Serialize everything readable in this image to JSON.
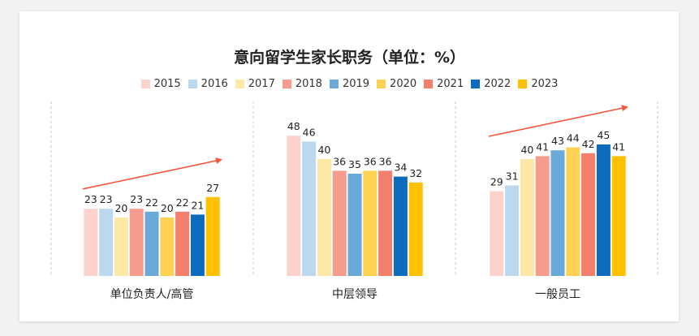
{
  "chart_data": {
    "type": "bar",
    "title": "意向留学生家长职务（单位：%）",
    "categories": [
      "单位负责人/高管",
      "中层领导",
      "一般员工"
    ],
    "series": [
      {
        "name": "2015",
        "color": "#fcd2cc",
        "values": [
          23,
          48,
          29
        ]
      },
      {
        "name": "2016",
        "color": "#bcd8ef",
        "values": [
          23,
          46,
          31
        ]
      },
      {
        "name": "2017",
        "color": "#fde8a6",
        "values": [
          20,
          40,
          40
        ]
      },
      {
        "name": "2018",
        "color": "#f69c8e",
        "values": [
          23,
          36,
          41
        ]
      },
      {
        "name": "2019",
        "color": "#6aaad8",
        "values": [
          22,
          35,
          43
        ]
      },
      {
        "name": "2020",
        "color": "#fdd253",
        "values": [
          20,
          36,
          44
        ]
      },
      {
        "name": "2021",
        "color": "#f47f6d",
        "values": [
          22,
          36,
          42
        ]
      },
      {
        "name": "2022",
        "color": "#0d6bbd",
        "values": [
          21,
          34,
          45
        ]
      },
      {
        "name": "2023",
        "color": "#ffc000",
        "values": [
          27,
          32,
          41
        ]
      }
    ],
    "ylim": [
      0,
      60
    ],
    "grid": false,
    "legend_position": "top",
    "trend_arrow_color": "#f4553b"
  }
}
